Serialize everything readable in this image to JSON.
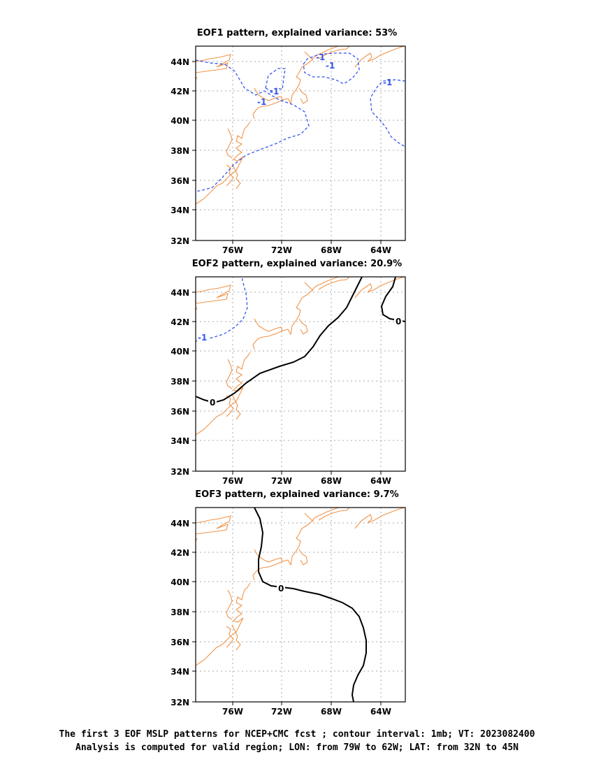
{
  "panels": [
    {
      "title": "EOF1 pattern, explained variance: 53%",
      "lat_ticks": [
        "44N",
        "42N",
        "40N",
        "38N",
        "36N",
        "34N",
        "32N"
      ],
      "lon_ticks": [
        "76W",
        "72W",
        "68W",
        "64W"
      ],
      "contour_labels": [
        "-1",
        "-1",
        "-1",
        "-1",
        "-1"
      ]
    },
    {
      "title": "EOF2 pattern, explained variance: 20.9%",
      "lat_ticks": [
        "44N",
        "42N",
        "40N",
        "38N",
        "36N",
        "34N",
        "32N"
      ],
      "lon_ticks": [
        "76W",
        "72W",
        "68W",
        "64W"
      ],
      "contour_labels": [
        "-1",
        "0",
        "0"
      ]
    },
    {
      "title": "EOF3 pattern, explained variance: 9.7%",
      "lat_ticks": [
        "44N",
        "42N",
        "40N",
        "38N",
        "36N",
        "34N",
        "32N"
      ],
      "lon_ticks": [
        "76W",
        "72W",
        "68W",
        "64W"
      ],
      "contour_labels": [
        "0"
      ]
    }
  ],
  "caption": {
    "line1": "The first 3 EOF MSLP patterns for NCEP+CMC fcst ; contour interval: 1mb; VT: 2023082400",
    "line2": "Analysis is computed for valid region; LON: from 79W to 62W; LAT: from 32N to 45N"
  },
  "colors": {
    "coastline": "#f0944a",
    "negative_contour": "#3355ee",
    "zero_contour": "#000000",
    "grid": "#aaaaaa"
  }
}
